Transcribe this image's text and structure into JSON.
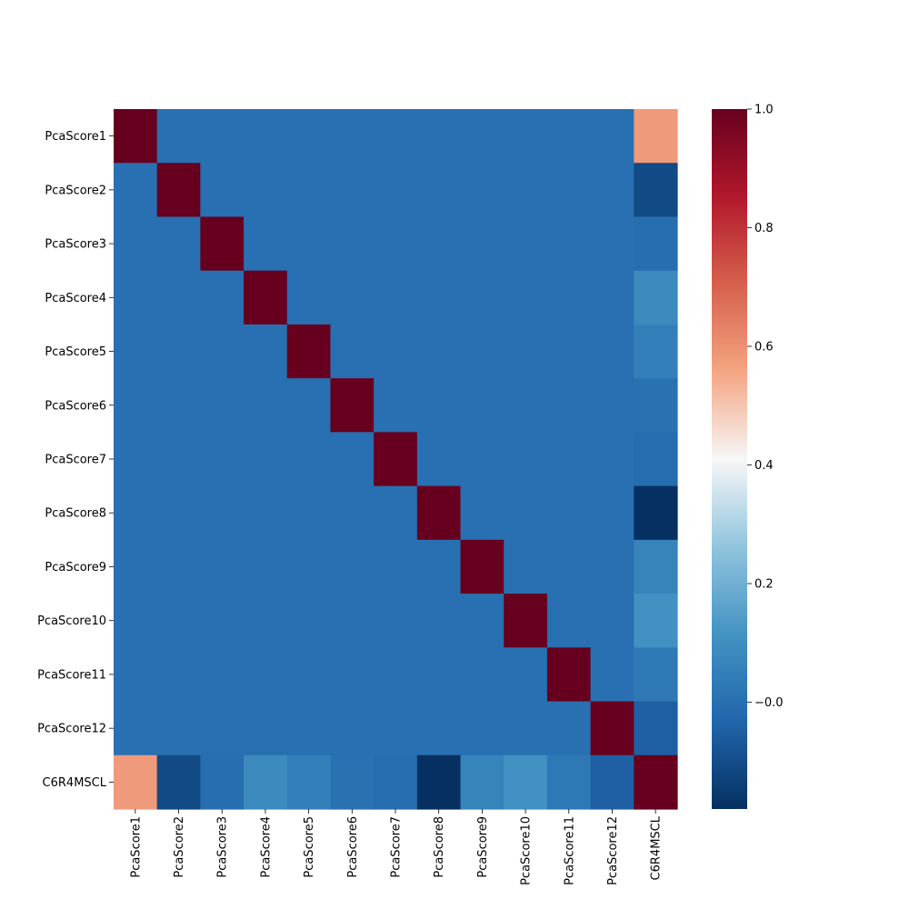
{
  "chart_data": {
    "type": "heatmap",
    "title": "",
    "xlabel": "",
    "ylabel": "",
    "x_categories": [
      "PcaScore1",
      "PcaScore2",
      "PcaScore3",
      "PcaScore4",
      "PcaScore5",
      "PcaScore6",
      "PcaScore7",
      "PcaScore8",
      "PcaScore9",
      "PcaScore10",
      "PcaScore11",
      "PcaScore12",
      "C6R4MSCL"
    ],
    "y_categories": [
      "PcaScore1",
      "PcaScore2",
      "PcaScore3",
      "PcaScore4",
      "PcaScore5",
      "PcaScore6",
      "PcaScore7",
      "PcaScore8",
      "PcaScore9",
      "PcaScore10",
      "PcaScore11",
      "PcaScore12",
      "C6R4MSCL"
    ],
    "matrix": [
      [
        1,
        0,
        0,
        0,
        0,
        0,
        0,
        0,
        0,
        0,
        0,
        0,
        0.58
      ],
      [
        0,
        1,
        0,
        0,
        0,
        0,
        0,
        0,
        0,
        0,
        0,
        0,
        -0.11
      ],
      [
        0,
        0,
        1,
        0,
        0,
        0,
        0,
        0,
        0,
        0,
        0,
        0,
        -0.005
      ],
      [
        0,
        0,
        0,
        1,
        0,
        0,
        0,
        0,
        0,
        0,
        0,
        0,
        0.085
      ],
      [
        0,
        0,
        0,
        0,
        1,
        0,
        0,
        0,
        0,
        0,
        0,
        0,
        0.05
      ],
      [
        0,
        0,
        0,
        0,
        0,
        1,
        0,
        0,
        0,
        0,
        0,
        0,
        0.005
      ],
      [
        0,
        0,
        0,
        0,
        0,
        0,
        1,
        0,
        0,
        0,
        0,
        0,
        -0.01
      ],
      [
        0,
        0,
        0,
        0,
        0,
        0,
        0,
        1,
        0,
        0,
        0,
        0,
        -0.18
      ],
      [
        0,
        0,
        0,
        0,
        0,
        0,
        0,
        0,
        1,
        0,
        0,
        0,
        0.065
      ],
      [
        0,
        0,
        0,
        0,
        0,
        0,
        0,
        0,
        0,
        1,
        0,
        0,
        0.11
      ],
      [
        0,
        0,
        0,
        0,
        0,
        0,
        0,
        0,
        0,
        0,
        1,
        0,
        0.025
      ],
      [
        0,
        0,
        0,
        0,
        0,
        0,
        0,
        0,
        0,
        0,
        0,
        1,
        -0.05
      ],
      [
        0.58,
        -0.11,
        -0.005,
        0.085,
        0.05,
        0.005,
        -0.01,
        -0.18,
        0.065,
        0.11,
        0.025,
        -0.05,
        1
      ]
    ],
    "colormap": "RdBu_r",
    "vmin": -0.18,
    "vmax": 1.0,
    "colorbar": {
      "ticks": [
        -0.0,
        0.2,
        0.4,
        0.6,
        0.8,
        1.0
      ],
      "tick_labels": [
        "−0.0",
        "0.2",
        "0.4",
        "0.6",
        "0.8",
        "1.0"
      ]
    },
    "grid": false,
    "legend": "colorbar-right"
  }
}
